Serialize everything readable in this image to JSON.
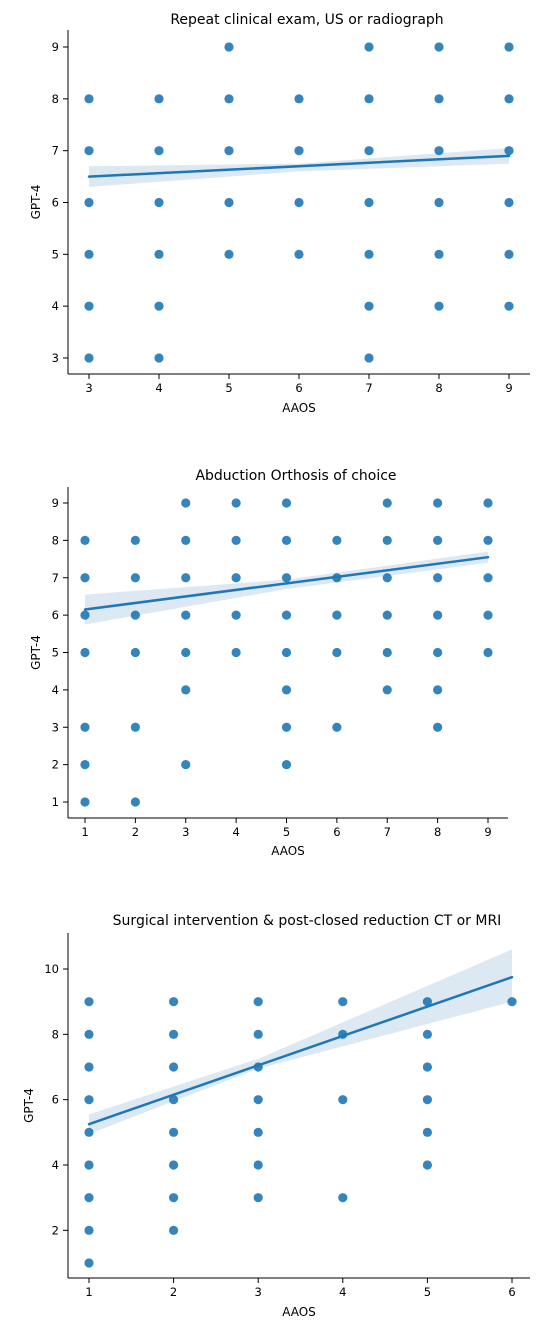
{
  "colors": {
    "point": "#1f77b4",
    "band": "#d6e4f0"
  },
  "chart_data": [
    {
      "type": "scatter",
      "title": "Repeat clinical exam, US or radiograph",
      "xlabel": "AAOS",
      "ylabel": "GPT-4",
      "xlim": [
        3,
        9
      ],
      "ylim": [
        3,
        9
      ],
      "xticks": [
        3,
        4,
        5,
        6,
        7,
        8,
        9
      ],
      "yticks": [
        3,
        4,
        5,
        6,
        7,
        8,
        9
      ],
      "points": [
        [
          3,
          3
        ],
        [
          3,
          4
        ],
        [
          3,
          5
        ],
        [
          3,
          6
        ],
        [
          3,
          7
        ],
        [
          3,
          8
        ],
        [
          4,
          3
        ],
        [
          4,
          4
        ],
        [
          4,
          5
        ],
        [
          4,
          6
        ],
        [
          4,
          7
        ],
        [
          4,
          8
        ],
        [
          5,
          5
        ],
        [
          5,
          6
        ],
        [
          5,
          7
        ],
        [
          5,
          8
        ],
        [
          5,
          9
        ],
        [
          6,
          5
        ],
        [
          6,
          6
        ],
        [
          6,
          7
        ],
        [
          6,
          8
        ],
        [
          7,
          3
        ],
        [
          7,
          4
        ],
        [
          7,
          5
        ],
        [
          7,
          6
        ],
        [
          7,
          7
        ],
        [
          7,
          8
        ],
        [
          7,
          9
        ],
        [
          8,
          4
        ],
        [
          8,
          5
        ],
        [
          8,
          6
        ],
        [
          8,
          7
        ],
        [
          8,
          8
        ],
        [
          8,
          9
        ],
        [
          9,
          4
        ],
        [
          9,
          5
        ],
        [
          9,
          6
        ],
        [
          9,
          7
        ],
        [
          9,
          8
        ],
        [
          9,
          9
        ]
      ],
      "regression": {
        "x": [
          3,
          9
        ],
        "y": [
          6.5,
          6.9
        ]
      },
      "ci_band": {
        "x": [
          3,
          6,
          9
        ],
        "lower": [
          6.3,
          6.6,
          6.75
        ],
        "upper": [
          6.7,
          6.75,
          7.05
        ]
      }
    },
    {
      "type": "scatter",
      "title": "Abduction Orthosis of choice",
      "xlabel": "AAOS",
      "ylabel": "GPT-4",
      "xlim": [
        1,
        9
      ],
      "ylim": [
        1,
        9
      ],
      "xticks": [
        1,
        2,
        3,
        4,
        5,
        6,
        7,
        8,
        9
      ],
      "yticks": [
        1,
        2,
        3,
        4,
        5,
        6,
        7,
        8,
        9
      ],
      "points": [
        [
          1,
          1
        ],
        [
          1,
          2
        ],
        [
          1,
          3
        ],
        [
          1,
          5
        ],
        [
          1,
          6
        ],
        [
          1,
          7
        ],
        [
          1,
          8
        ],
        [
          2,
          1
        ],
        [
          2,
          3
        ],
        [
          2,
          5
        ],
        [
          2,
          6
        ],
        [
          2,
          7
        ],
        [
          2,
          8
        ],
        [
          3,
          2
        ],
        [
          3,
          4
        ],
        [
          3,
          5
        ],
        [
          3,
          6
        ],
        [
          3,
          7
        ],
        [
          3,
          8
        ],
        [
          3,
          9
        ],
        [
          4,
          5
        ],
        [
          4,
          6
        ],
        [
          4,
          7
        ],
        [
          4,
          8
        ],
        [
          4,
          9
        ],
        [
          5,
          2
        ],
        [
          5,
          3
        ],
        [
          5,
          4
        ],
        [
          5,
          5
        ],
        [
          5,
          6
        ],
        [
          5,
          7
        ],
        [
          5,
          8
        ],
        [
          5,
          9
        ],
        [
          6,
          3
        ],
        [
          6,
          5
        ],
        [
          6,
          6
        ],
        [
          6,
          7
        ],
        [
          6,
          8
        ],
        [
          7,
          4
        ],
        [
          7,
          5
        ],
        [
          7,
          6
        ],
        [
          7,
          7
        ],
        [
          7,
          8
        ],
        [
          7,
          9
        ],
        [
          8,
          3
        ],
        [
          8,
          4
        ],
        [
          8,
          5
        ],
        [
          8,
          6
        ],
        [
          8,
          7
        ],
        [
          8,
          8
        ],
        [
          8,
          9
        ],
        [
          9,
          5
        ],
        [
          9,
          6
        ],
        [
          9,
          7
        ],
        [
          9,
          8
        ],
        [
          9,
          9
        ]
      ],
      "regression": {
        "x": [
          1,
          9
        ],
        "y": [
          6.15,
          7.55
        ]
      },
      "ci_band": {
        "x": [
          1,
          5,
          9
        ],
        "lower": [
          5.75,
          6.7,
          7.4
        ],
        "upper": [
          6.55,
          6.95,
          7.7
        ]
      }
    },
    {
      "type": "scatter",
      "title": "Surgical intervention & post-closed reduction CT or MRI",
      "xlabel": "AAOS",
      "ylabel": "GPT-4",
      "xlim": [
        1,
        6
      ],
      "ylim": [
        1,
        10
      ],
      "xticks": [
        1,
        2,
        3,
        4,
        5,
        6
      ],
      "yticks": [
        2,
        4,
        6,
        8,
        10
      ],
      "points": [
        [
          1,
          1
        ],
        [
          1,
          2
        ],
        [
          1,
          3
        ],
        [
          1,
          4
        ],
        [
          1,
          5
        ],
        [
          1,
          6
        ],
        [
          1,
          7
        ],
        [
          1,
          8
        ],
        [
          1,
          9
        ],
        [
          2,
          2
        ],
        [
          2,
          3
        ],
        [
          2,
          4
        ],
        [
          2,
          5
        ],
        [
          2,
          6
        ],
        [
          2,
          7
        ],
        [
          2,
          8
        ],
        [
          2,
          9
        ],
        [
          3,
          3
        ],
        [
          3,
          4
        ],
        [
          3,
          5
        ],
        [
          3,
          6
        ],
        [
          3,
          7
        ],
        [
          3,
          8
        ],
        [
          3,
          9
        ],
        [
          4,
          3
        ],
        [
          4,
          6
        ],
        [
          4,
          8
        ],
        [
          4,
          9
        ],
        [
          5,
          4
        ],
        [
          5,
          5
        ],
        [
          5,
          6
        ],
        [
          5,
          7
        ],
        [
          5,
          8
        ],
        [
          5,
          9
        ],
        [
          6,
          9
        ]
      ],
      "regression": {
        "x": [
          1,
          6
        ],
        "y": [
          5.25,
          9.75
        ]
      },
      "ci_band": {
        "x": [
          1,
          3,
          6
        ],
        "lower": [
          4.95,
          6.95,
          9.0
        ],
        "upper": [
          5.55,
          7.25,
          10.6
        ]
      }
    }
  ]
}
